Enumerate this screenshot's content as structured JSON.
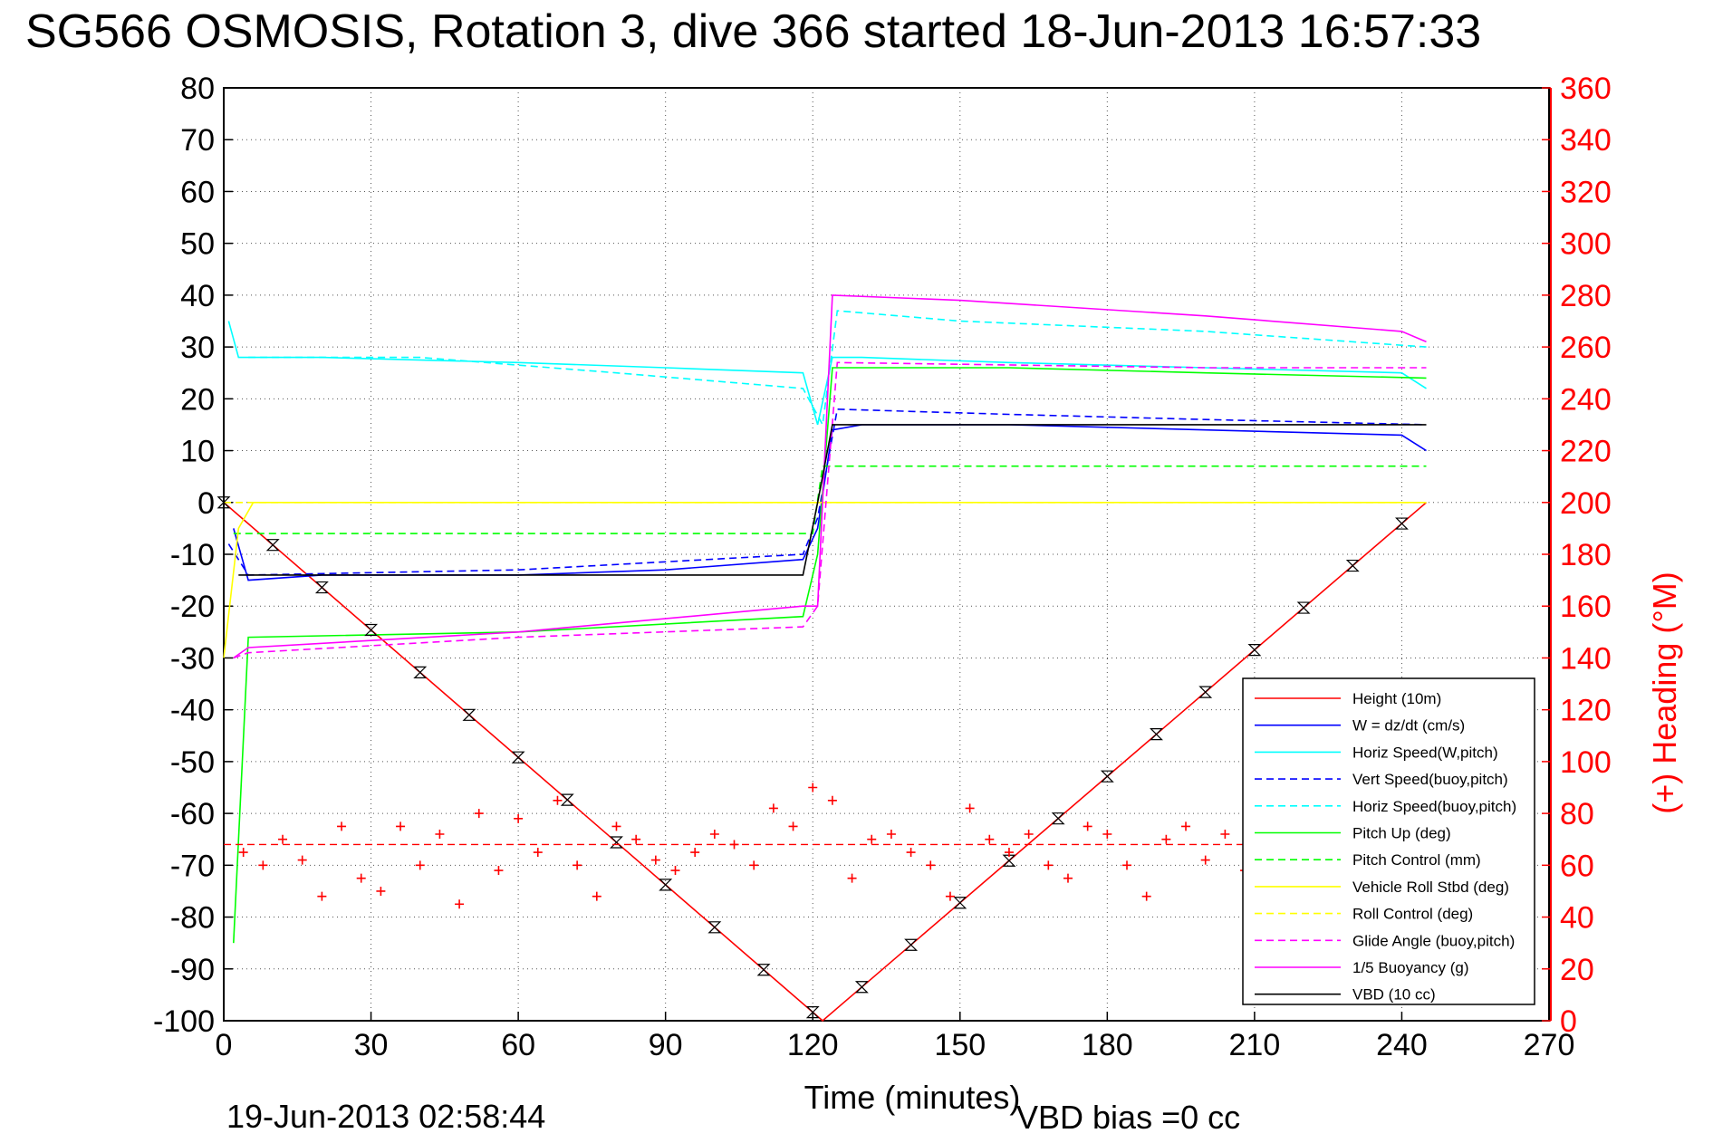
{
  "title": "SG566 OSMOSIS, Rotation 3, dive 366 started 18-Jun-2013 16:57:33",
  "footer": {
    "end_time": "19-Jun-2013 02:58:44",
    "vbd_bias": "VBD bias =0 cc"
  },
  "colors": {
    "red": "#ff0000",
    "blue": "#0000ff",
    "cyan": "#00ffff",
    "green": "#00ff00",
    "yellow": "#ffff00",
    "magenta": "#ff00ff",
    "black": "#000000"
  },
  "chart_data": {
    "type": "line",
    "xlabel": "Time (minutes)",
    "ylabel_right": "(+) Heading (°M)",
    "xlim": [
      0,
      270
    ],
    "ylim_left": [
      -100,
      80
    ],
    "ylim_right": [
      0,
      360
    ],
    "xticks": [
      0,
      30,
      60,
      90,
      120,
      150,
      180,
      210,
      240,
      270
    ],
    "yticks_left": [
      80,
      70,
      60,
      50,
      40,
      30,
      20,
      10,
      0,
      -10,
      -20,
      -30,
      -40,
      -50,
      -60,
      -70,
      -80,
      -90,
      -100
    ],
    "yticks_right": [
      360,
      340,
      320,
      300,
      280,
      260,
      240,
      220,
      200,
      180,
      160,
      140,
      120,
      100,
      80,
      60,
      40,
      20,
      0
    ],
    "grid": true,
    "legend_position": "bottom-right",
    "series": [
      {
        "name": "Height (10m)",
        "color": "#ff0000",
        "style": "solid",
        "x": [
          0,
          122,
          245
        ],
        "y": [
          0,
          -100,
          0
        ]
      },
      {
        "name": "W = dz/dt (cm/s)",
        "color": "#0000ff",
        "style": "solid",
        "x": [
          2,
          5,
          20,
          60,
          90,
          118,
          121,
          124,
          130,
          160,
          200,
          240,
          245
        ],
        "y": [
          -5,
          -15,
          -14,
          -14,
          -13,
          -11,
          -5,
          14,
          15,
          15,
          14,
          13,
          10
        ]
      },
      {
        "name": "Horiz Speed(W,pitch)",
        "color": "#00ffff",
        "style": "solid",
        "x": [
          1,
          3,
          20,
          60,
          90,
          118,
          121,
          124,
          130,
          160,
          200,
          240,
          245
        ],
        "y": [
          35,
          28,
          28,
          27,
          26,
          25,
          15,
          28,
          28,
          27,
          26,
          25,
          22
        ]
      },
      {
        "name": "Vert Speed(buoy,pitch)",
        "color": "#0000ff",
        "style": "dashed",
        "x": [
          1,
          5,
          60,
          118,
          121,
          125,
          160,
          200,
          245
        ],
        "y": [
          -8,
          -14,
          -13,
          -10,
          -3,
          18,
          17,
          16,
          15
        ]
      },
      {
        "name": "Horiz Speed(buoy,pitch)",
        "color": "#00ffff",
        "style": "dashed",
        "x": [
          5,
          40,
          80,
          118,
          122,
          125,
          150,
          200,
          245
        ],
        "y": [
          28,
          28,
          25,
          22,
          15,
          37,
          35,
          33,
          30
        ]
      },
      {
        "name": "Pitch Up (deg)",
        "color": "#00ff00",
        "style": "solid",
        "x": [
          2,
          5,
          60,
          118,
          121,
          124,
          160,
          200,
          245
        ],
        "y": [
          -85,
          -26,
          -25,
          -22,
          -10,
          26,
          26,
          25,
          24
        ]
      },
      {
        "name": "Pitch Control (mm)",
        "color": "#00ff00",
        "style": "dashed",
        "x": [
          2,
          120,
          122,
          245
        ],
        "y": [
          -6,
          -6,
          7,
          7
        ]
      },
      {
        "name": "Vehicle Roll Stbd (deg)",
        "color": "#ffff00",
        "style": "solid",
        "x": [
          0,
          3,
          6,
          120,
          124,
          245
        ],
        "y": [
          -30,
          -5,
          0,
          0,
          0,
          0
        ]
      },
      {
        "name": "Roll Control (deg)",
        "color": "#ffff00",
        "style": "dashed",
        "x": [
          0,
          245
        ],
        "y": [
          0,
          0
        ]
      },
      {
        "name": "Glide Angle (buoy,pitch)",
        "color": "#ff00ff",
        "style": "dashed",
        "x": [
          2,
          5,
          60,
          118,
          121,
          125,
          200,
          245
        ],
        "y": [
          -30,
          -29,
          -26,
          -24,
          -20,
          27,
          26,
          26
        ]
      },
      {
        "name": "1/5 Buoyancy (g)",
        "color": "#ff00ff",
        "style": "solid",
        "x": [
          2,
          5,
          60,
          118,
          121,
          124,
          150,
          200,
          240,
          245
        ],
        "y": [
          -30,
          -28,
          -25,
          -20,
          -20,
          40,
          39,
          36,
          33,
          31
        ]
      },
      {
        "name": "VBD (10 cc)",
        "color": "#000000",
        "style": "solid",
        "x": [
          3,
          118,
          121,
          124,
          245
        ],
        "y": [
          -14,
          -14,
          0,
          15,
          15
        ]
      }
    ],
    "heading_points": {
      "axis": "right",
      "color": "#ff0000",
      "marker": "+",
      "x": [
        4,
        8,
        12,
        16,
        20,
        24,
        28,
        32,
        36,
        40,
        44,
        48,
        52,
        56,
        60,
        64,
        68,
        72,
        76,
        80,
        84,
        88,
        92,
        96,
        100,
        104,
        108,
        112,
        116,
        120,
        124,
        128,
        132,
        136,
        140,
        144,
        148,
        152,
        156,
        160,
        164,
        168,
        172,
        176,
        180,
        184,
        188,
        192,
        196,
        200,
        204,
        208
      ],
      "y": [
        65,
        60,
        70,
        62,
        48,
        75,
        55,
        50,
        75,
        60,
        72,
        45,
        80,
        58,
        78,
        65,
        85,
        60,
        48,
        75,
        70,
        62,
        58,
        65,
        72,
        68,
        60,
        82,
        75,
        90,
        85,
        55,
        70,
        72,
        65,
        60,
        48,
        82,
        70,
        65,
        72,
        60,
        55,
        75,
        72,
        60,
        48,
        70,
        75,
        62,
        72,
        58
      ],
      "mean_line": 68
    }
  }
}
